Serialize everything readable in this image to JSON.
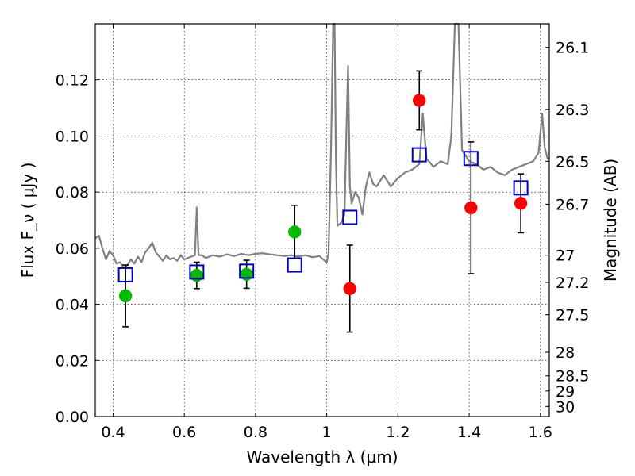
{
  "chart_data": {
    "type": "scatter",
    "xlabel": "Wavelength  λ (μm)",
    "ylabel": "Flux  F_ν  ( μJy )",
    "ylabel_right": "Magnitude (AB)",
    "xlim": [
      0.35,
      1.625
    ],
    "ylim": [
      0.0,
      0.14
    ],
    "grid": true,
    "x_ticks": [
      "0.4",
      "0.6",
      "0.8",
      "1",
      "1.2",
      "1.4",
      "1.6"
    ],
    "x_tick_values": [
      0.4,
      0.6,
      0.8,
      1.0,
      1.2,
      1.4,
      1.6
    ],
    "y_ticks": [
      "0.00",
      "0.02",
      "0.04",
      "0.06",
      "0.08",
      "0.10",
      "0.12"
    ],
    "y_tick_values": [
      0.0,
      0.02,
      0.04,
      0.06,
      0.08,
      0.1,
      0.12
    ],
    "right_ticks": [
      {
        "label": "26.1",
        "flux": 0.1316
      },
      {
        "label": "26.3",
        "flux": 0.1094
      },
      {
        "label": "26.5",
        "flux": 0.091
      },
      {
        "label": "26.7",
        "flux": 0.0757
      },
      {
        "label": "27",
        "flux": 0.0575
      },
      {
        "label": "27.2",
        "flux": 0.0478
      },
      {
        "label": "27.5",
        "flux": 0.0363
      },
      {
        "label": "28",
        "flux": 0.0229
      },
      {
        "label": "28.5",
        "flux": 0.0145
      },
      {
        "label": "29",
        "flux": 0.0091
      },
      {
        "label": "30",
        "flux": 0.0036
      }
    ],
    "series": [
      {
        "marker": "circle",
        "color": "#00bb00",
        "points": [
          {
            "x": 0.435,
            "y": 0.043,
            "err": 0.011
          },
          {
            "x": 0.635,
            "y": 0.0503,
            "err": 0.0047
          },
          {
            "x": 0.775,
            "y": 0.0507,
            "err": 0.005
          },
          {
            "x": 0.91,
            "y": 0.0658,
            "err": 0.0095
          }
        ]
      },
      {
        "marker": "circle",
        "color": "#ff0000",
        "points": [
          {
            "x": 1.065,
            "y": 0.0456,
            "err": 0.0155
          },
          {
            "x": 1.26,
            "y": 0.1127,
            "err": 0.0105
          },
          {
            "x": 1.405,
            "y": 0.0744,
            "err": 0.0235
          },
          {
            "x": 1.545,
            "y": 0.076,
            "err": 0.0105
          }
        ]
      },
      {
        "marker": "square-open",
        "color": "#0000cc",
        "points": [
          {
            "x": 0.435,
            "y": 0.0505
          },
          {
            "x": 0.635,
            "y": 0.0515
          },
          {
            "x": 0.775,
            "y": 0.0518
          },
          {
            "x": 0.91,
            "y": 0.054
          },
          {
            "x": 1.065,
            "y": 0.071
          },
          {
            "x": 1.26,
            "y": 0.0933
          },
          {
            "x": 1.405,
            "y": 0.092
          },
          {
            "x": 1.545,
            "y": 0.0815
          }
        ]
      },
      {
        "marker": "line",
        "color": "#808080",
        "points": [
          {
            "x": 0.35,
            "y": 0.0635
          },
          {
            "x": 0.36,
            "y": 0.0645
          },
          {
            "x": 0.37,
            "y": 0.06
          },
          {
            "x": 0.38,
            "y": 0.056
          },
          {
            "x": 0.39,
            "y": 0.059
          },
          {
            "x": 0.4,
            "y": 0.0575
          },
          {
            "x": 0.41,
            "y": 0.0545
          },
          {
            "x": 0.42,
            "y": 0.055
          },
          {
            "x": 0.43,
            "y": 0.053
          },
          {
            "x": 0.44,
            "y": 0.054
          },
          {
            "x": 0.45,
            "y": 0.056
          },
          {
            "x": 0.46,
            "y": 0.0545
          },
          {
            "x": 0.47,
            "y": 0.057
          },
          {
            "x": 0.48,
            "y": 0.055
          },
          {
            "x": 0.49,
            "y": 0.0585
          },
          {
            "x": 0.5,
            "y": 0.06
          },
          {
            "x": 0.51,
            "y": 0.062
          },
          {
            "x": 0.52,
            "y": 0.0585
          },
          {
            "x": 0.53,
            "y": 0.057
          },
          {
            "x": 0.54,
            "y": 0.0555
          },
          {
            "x": 0.55,
            "y": 0.0575
          },
          {
            "x": 0.56,
            "y": 0.056
          },
          {
            "x": 0.57,
            "y": 0.0565
          },
          {
            "x": 0.58,
            "y": 0.0555
          },
          {
            "x": 0.59,
            "y": 0.0575
          },
          {
            "x": 0.6,
            "y": 0.056
          },
          {
            "x": 0.61,
            "y": 0.0565
          },
          {
            "x": 0.62,
            "y": 0.057
          },
          {
            "x": 0.63,
            "y": 0.0575
          },
          {
            "x": 0.635,
            "y": 0.0745
          },
          {
            "x": 0.64,
            "y": 0.0575
          },
          {
            "x": 0.65,
            "y": 0.0575
          },
          {
            "x": 0.66,
            "y": 0.0565
          },
          {
            "x": 0.67,
            "y": 0.057
          },
          {
            "x": 0.68,
            "y": 0.0575
          },
          {
            "x": 0.7,
            "y": 0.057
          },
          {
            "x": 0.72,
            "y": 0.0578
          },
          {
            "x": 0.74,
            "y": 0.0572
          },
          {
            "x": 0.76,
            "y": 0.058
          },
          {
            "x": 0.78,
            "y": 0.0575
          },
          {
            "x": 0.8,
            "y": 0.058
          },
          {
            "x": 0.82,
            "y": 0.0582
          },
          {
            "x": 0.84,
            "y": 0.0578
          },
          {
            "x": 0.86,
            "y": 0.0575
          },
          {
            "x": 0.88,
            "y": 0.0572
          },
          {
            "x": 0.9,
            "y": 0.0575
          },
          {
            "x": 0.92,
            "y": 0.057
          },
          {
            "x": 0.94,
            "y": 0.0575
          },
          {
            "x": 0.96,
            "y": 0.0568
          },
          {
            "x": 0.98,
            "y": 0.0572
          },
          {
            "x": 0.99,
            "y": 0.056
          },
          {
            "x": 1.0,
            "y": 0.055
          },
          {
            "x": 1.005,
            "y": 0.058
          },
          {
            "x": 1.012,
            "y": 0.095
          },
          {
            "x": 1.018,
            "y": 0.14
          },
          {
            "x": 1.022,
            "y": 0.14
          },
          {
            "x": 1.026,
            "y": 0.09
          },
          {
            "x": 1.03,
            "y": 0.068
          },
          {
            "x": 1.04,
            "y": 0.069
          },
          {
            "x": 1.05,
            "y": 0.072
          },
          {
            "x": 1.055,
            "y": 0.1
          },
          {
            "x": 1.06,
            "y": 0.125
          },
          {
            "x": 1.065,
            "y": 0.082
          },
          {
            "x": 1.07,
            "y": 0.076
          },
          {
            "x": 1.08,
            "y": 0.08
          },
          {
            "x": 1.09,
            "y": 0.078
          },
          {
            "x": 1.1,
            "y": 0.072
          },
          {
            "x": 1.11,
            "y": 0.082
          },
          {
            "x": 1.12,
            "y": 0.087
          },
          {
            "x": 1.13,
            "y": 0.083
          },
          {
            "x": 1.14,
            "y": 0.082
          },
          {
            "x": 1.16,
            "y": 0.086
          },
          {
            "x": 1.18,
            "y": 0.082
          },
          {
            "x": 1.2,
            "y": 0.085
          },
          {
            "x": 1.22,
            "y": 0.087
          },
          {
            "x": 1.24,
            "y": 0.088
          },
          {
            "x": 1.26,
            "y": 0.09
          },
          {
            "x": 1.27,
            "y": 0.108
          },
          {
            "x": 1.28,
            "y": 0.092
          },
          {
            "x": 1.3,
            "y": 0.089
          },
          {
            "x": 1.32,
            "y": 0.091
          },
          {
            "x": 1.34,
            "y": 0.09
          },
          {
            "x": 1.35,
            "y": 0.1
          },
          {
            "x": 1.36,
            "y": 0.14
          },
          {
            "x": 1.37,
            "y": 0.14
          },
          {
            "x": 1.38,
            "y": 0.095
          },
          {
            "x": 1.4,
            "y": 0.091
          },
          {
            "x": 1.42,
            "y": 0.09
          },
          {
            "x": 1.44,
            "y": 0.088
          },
          {
            "x": 1.46,
            "y": 0.089
          },
          {
            "x": 1.48,
            "y": 0.087
          },
          {
            "x": 1.5,
            "y": 0.086
          },
          {
            "x": 1.52,
            "y": 0.088
          },
          {
            "x": 1.54,
            "y": 0.089
          },
          {
            "x": 1.56,
            "y": 0.09
          },
          {
            "x": 1.58,
            "y": 0.091
          },
          {
            "x": 1.595,
            "y": 0.094
          },
          {
            "x": 1.605,
            "y": 0.108
          },
          {
            "x": 1.612,
            "y": 0.096
          },
          {
            "x": 1.62,
            "y": 0.092
          },
          {
            "x": 1.625,
            "y": 0.092
          }
        ]
      }
    ]
  }
}
